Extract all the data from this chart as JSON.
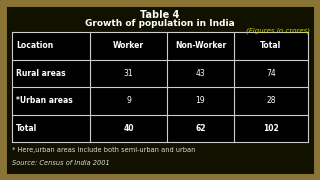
{
  "title1": "Table 4",
  "title2": "Growth of population in India",
  "subtitle": "(Figures in crores)",
  "columns": [
    "Location",
    "Worker",
    "Non-Worker",
    "Total"
  ],
  "rows": [
    [
      "Rural areas",
      "31",
      "43",
      "74"
    ],
    [
      "*Urban areas",
      "9",
      "19",
      "28"
    ],
    [
      "Total",
      "40",
      "62",
      "102"
    ]
  ],
  "footnote1": "* Here,urban areas include both semi-urban and urban",
  "footnote2": "Source: Census of India 2001",
  "bg_color": "#111100",
  "border_color": "#8B7536",
  "table_bg": "#000000",
  "table_line_color": "#cccccc",
  "header_text_color": "#ffffff",
  "data_text_color": "#ffffff",
  "title_color": "#ffffff",
  "subtitle_color": "#cccc00",
  "footnote_color": "#dddddd"
}
